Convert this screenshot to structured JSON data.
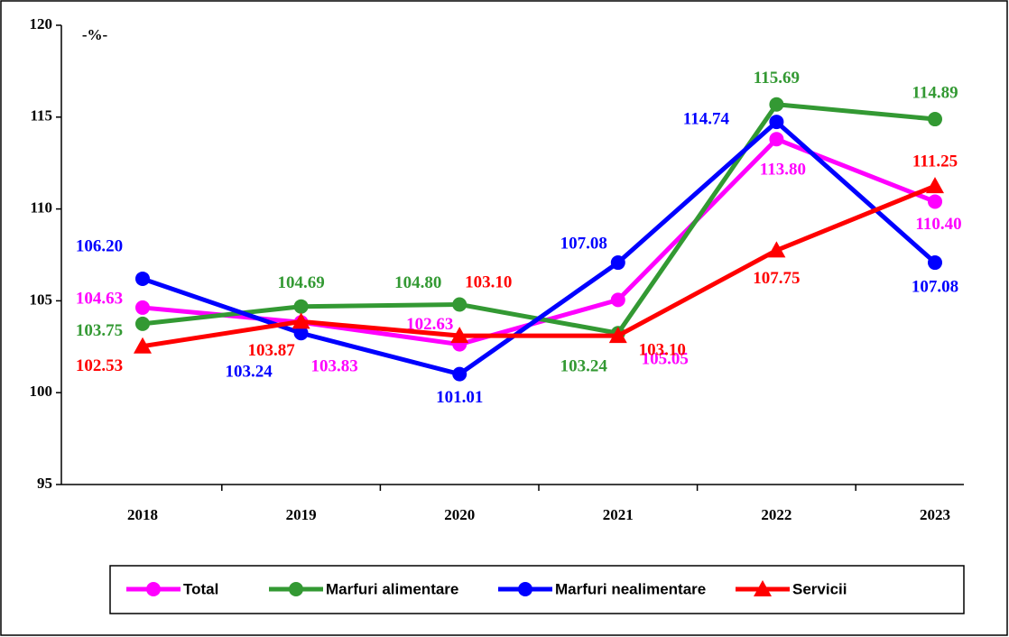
{
  "chart_data": {
    "type": "line",
    "subtitle": "-%-",
    "categories": [
      "2018",
      "2019",
      "2020",
      "2021",
      "2022",
      "2023"
    ],
    "ylim": [
      95,
      120
    ],
    "yticks": [
      95,
      100,
      105,
      110,
      115,
      120
    ],
    "series": [
      {
        "name": "Total",
        "color": "#ff00ff",
        "marker": "circle",
        "values": [
          104.63,
          103.83,
          102.63,
          105.05,
          113.8,
          110.4
        ],
        "value_labels": [
          "104.63",
          "103.83",
          "102.63",
          "105.05",
          "113.80",
          "110.40"
        ]
      },
      {
        "name": "Marfuri alimentare",
        "color": "#339933",
        "marker": "circle",
        "values": [
          103.75,
          104.69,
          104.8,
          103.24,
          115.69,
          114.89
        ],
        "value_labels": [
          "103.75",
          "104.69",
          "104.80",
          "103.24",
          "115.69",
          "114.89"
        ]
      },
      {
        "name": "Marfuri nealimentare",
        "color": "#0000ff",
        "marker": "circle",
        "values": [
          106.2,
          103.24,
          101.01,
          107.08,
          114.74,
          107.08
        ],
        "value_labels": [
          "106.20",
          "103.24",
          "101.01",
          "107.08",
          "114.74",
          "107.08"
        ]
      },
      {
        "name": "Servicii",
        "color": "#ff0000",
        "marker": "triangle",
        "values": [
          102.53,
          103.87,
          103.1,
          103.1,
          107.75,
          111.25
        ],
        "value_labels": [
          "102.53",
          "103.87",
          "103.10",
          "103.10",
          "107.75",
          "111.25"
        ]
      }
    ]
  }
}
